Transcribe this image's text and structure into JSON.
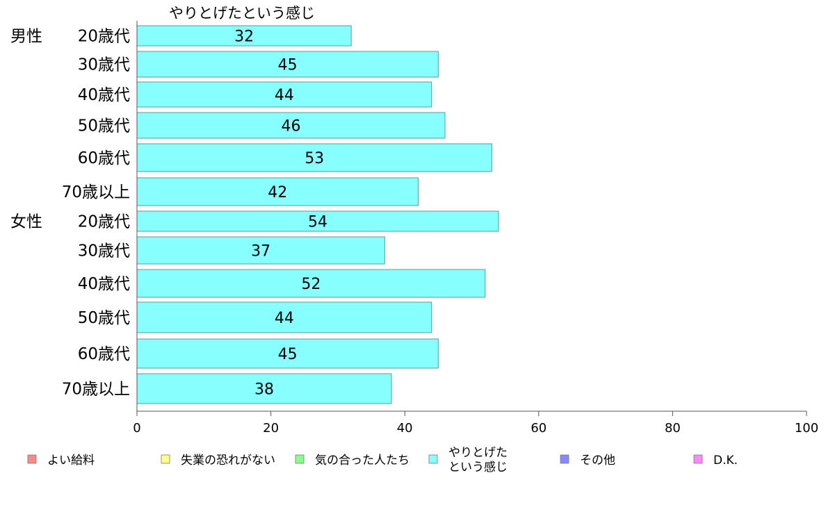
{
  "chart_data": {
    "type": "bar",
    "orientation": "horizontal",
    "title": "やりとげたという感じ",
    "xlim": [
      0,
      100
    ],
    "xticks": [
      0,
      20,
      40,
      60,
      80,
      100
    ],
    "grid": false,
    "legend_position": "bottom",
    "groups": [
      {
        "label": "男性",
        "start_index": 0
      },
      {
        "label": "女性",
        "start_index": 6
      }
    ],
    "categories": [
      "20歳代",
      "30歳代",
      "40歳代",
      "50歳代",
      "60歳代",
      "70歳以上",
      "20歳代",
      "30歳代",
      "40歳代",
      "50歳代",
      "60歳代",
      "70歳以上"
    ],
    "series": [
      {
        "name": "やりとげたという感じ",
        "color": "#88ffff",
        "values": [
          32,
          45,
          44,
          46,
          53,
          42,
          54,
          37,
          52,
          44,
          45,
          38
        ]
      }
    ],
    "legend": [
      {
        "label": "よい給料",
        "color": "#ff8888"
      },
      {
        "label": "失業の恐れがない",
        "color": "#ffff88"
      },
      {
        "label": "気の合った人たち",
        "color": "#88ff88"
      },
      {
        "label": "やりとげた\nという感じ",
        "color": "#88ffff"
      },
      {
        "label": "その他",
        "color": "#8888ff"
      },
      {
        "label": "D.K.",
        "color": "#ff88ff"
      }
    ]
  }
}
